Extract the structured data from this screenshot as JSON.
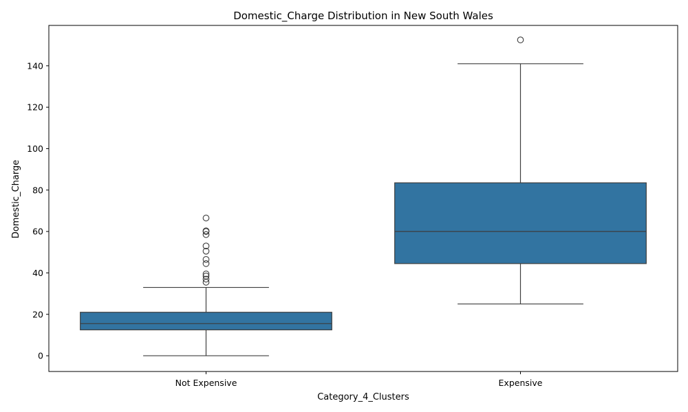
{
  "chart_data": {
    "type": "box",
    "title": "Domestic_Charge Distribution in New South Wales",
    "xlabel": "Category_4_Clusters",
    "ylabel": "Domestic_Charge",
    "ylim": [
      -7.6,
      159.5
    ],
    "yticks": [
      0,
      20,
      40,
      60,
      80,
      100,
      120,
      140
    ],
    "grid": false,
    "box_color": "#3274a1",
    "line_color": "#3d3d3d",
    "categories": [
      "Not Expensive",
      "Expensive"
    ],
    "boxes": [
      {
        "category": "Not Expensive",
        "whisker_low": 0,
        "q1": 12.5,
        "median": 15.5,
        "q3": 21,
        "whisker_high": 33,
        "outliers": [
          35.5,
          37,
          38.5,
          39.5,
          44.5,
          46.5,
          50.5,
          53,
          58.5,
          60,
          60.3,
          66.5
        ]
      },
      {
        "category": "Expensive",
        "whisker_low": 25,
        "q1": 44.5,
        "median": 60,
        "q3": 83.5,
        "whisker_high": 141,
        "outliers": [
          152.5
        ]
      }
    ]
  }
}
